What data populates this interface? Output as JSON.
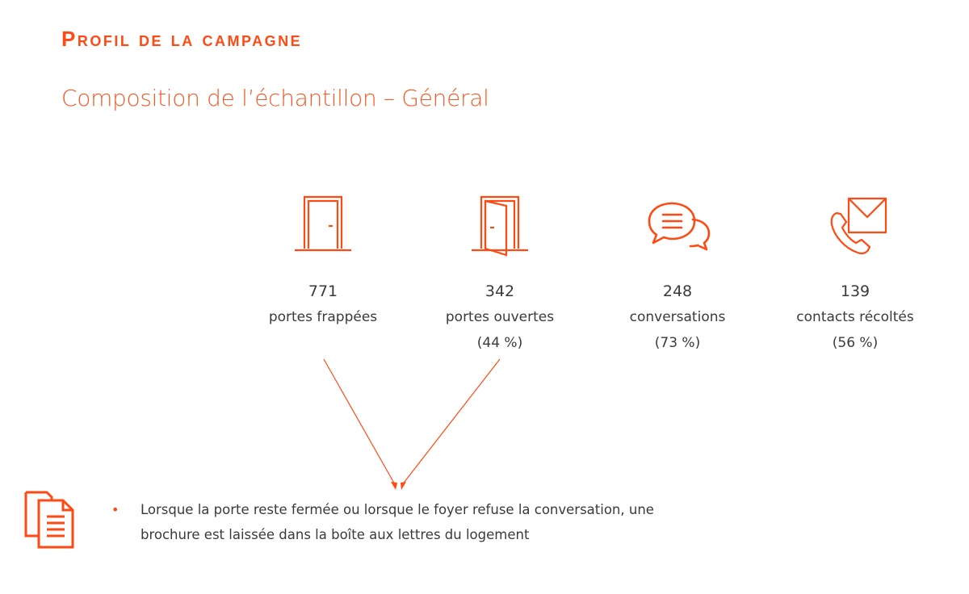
{
  "header": {
    "title": "Profil de la campagne",
    "subtitle": "Composition de l’échantillon – Général"
  },
  "colors": {
    "accent": "#ff4a14",
    "text": "#3a3a3a"
  },
  "stats": [
    {
      "icon": "closed-door-icon",
      "number": "771",
      "label": "portes frappées",
      "percent": ""
    },
    {
      "icon": "open-door-icon",
      "number": "342",
      "label": "portes ouvertes",
      "percent": "(44 %)"
    },
    {
      "icon": "speech-bubbles-icon",
      "number": "248",
      "label": "conversations",
      "percent": "(73 %)"
    },
    {
      "icon": "phone-envelope-icon",
      "number": "139",
      "label": "contacts récoltés",
      "percent": "(56 %)"
    }
  ],
  "note": {
    "icon": "documents-icon",
    "bullet": "•",
    "text": "Lorsque la porte reste fermée ou lorsque le foyer refuse la conversation, une brochure est laissée dans la boîte aux lettres du logement"
  }
}
